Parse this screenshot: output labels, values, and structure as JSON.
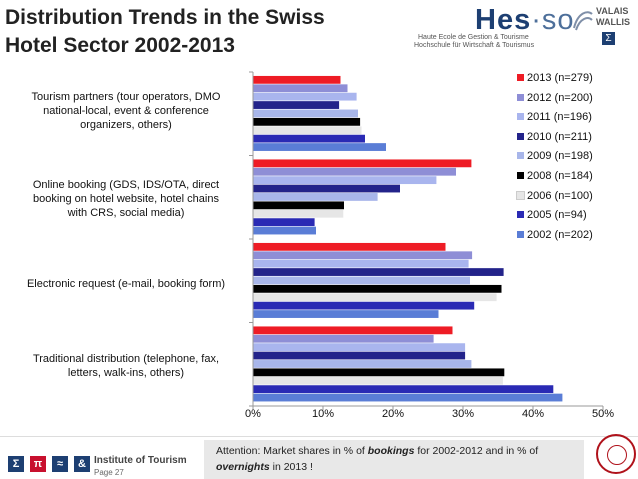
{
  "header": {
    "title_line1": "Distribution Trends in the Swiss",
    "title_line2": "Hotel Sector 2002-2013"
  },
  "logo": {
    "brand_hes": "Hes",
    "brand_so": "·so",
    "sub1": "Haute Ecole de Gestion & Tourisme",
    "sub2": "Hochschule für Wirtschaft & Tourismus",
    "valais": "VALAIS",
    "wallis": "WALLIS",
    "badge": "Σ"
  },
  "chart_data": {
    "type": "bar",
    "orientation": "horizontal",
    "categories": [
      "Tourism partners (tour operators, DMO national-local, event & conference organizers, others)",
      "Online booking (GDS, IDS/OTA, direct booking on hotel website, hotel chains with CRS, social media)",
      "Electronic request (e-mail, booking form)",
      "Traditional distribution (telephone, fax, letters, walk-ins, others)"
    ],
    "category_lines": [
      [
        "Tourism partners (tour operators, DMO",
        "national-local, event & conference",
        "organizers, others)"
      ],
      [
        "Online booking (GDS, IDS/OTA, direct",
        "booking on hotel website, hotel chains",
        "with CRS, social media)"
      ],
      [
        "Electronic request (e-mail, booking form)"
      ],
      [
        "Traditional distribution (telephone, fax,",
        "letters, walk-ins, others)"
      ]
    ],
    "series": [
      {
        "name": "2013 (n=279)",
        "color": "#ee1c25",
        "values": [
          12.5,
          31.2,
          27.5,
          28.5
        ]
      },
      {
        "name": "2012 (n=200)",
        "color": "#8e8ed6",
        "values": [
          13.5,
          29.0,
          31.3,
          25.8
        ]
      },
      {
        "name": "2011 (n=196)",
        "color": "#a9b5ee",
        "values": [
          14.8,
          26.2,
          30.8,
          30.3
        ]
      },
      {
        "name": "2010 (n=211)",
        "color": "#23238a",
        "values": [
          12.3,
          21.0,
          35.8,
          30.3
        ]
      },
      {
        "name": "2009 (n=198)",
        "color": "#a8b6ea",
        "values": [
          15.0,
          17.8,
          31.0,
          31.2
        ]
      },
      {
        "name": "2008 (n=184)",
        "color": "#000000",
        "values": [
          15.3,
          13.0,
          35.5,
          35.9
        ]
      },
      {
        "name": "2006 (n=100)",
        "color": "#e6e6e6",
        "values": [
          15.5,
          12.9,
          34.8,
          35.7
        ]
      },
      {
        "name": "2005 (n=94)",
        "color": "#2a2ab4",
        "values": [
          16.0,
          8.8,
          31.6,
          42.9
        ]
      },
      {
        "name": "2002 (n=202)",
        "color": "#5a7dd6",
        "values": [
          19.0,
          9.0,
          26.5,
          44.2
        ]
      }
    ],
    "xticks": [
      "0%",
      "10%",
      "20%",
      "30%",
      "40%",
      "50%"
    ],
    "xlim": [
      0,
      50
    ],
    "grid": false,
    "legend": "right"
  },
  "footer": {
    "institute": "Institute of Tourism",
    "page": "Page 27",
    "symbols": [
      "Σ",
      "π",
      "≈",
      "&"
    ],
    "symbol_colors": [
      "#1d3f72",
      "#c8102e",
      "#1d3f72",
      "#1d3f72"
    ],
    "attention_pre": "Attention: Market shares in % of ",
    "attention_em1": "bookings",
    "attention_mid": " for 2002-2012 and in % of",
    "attention_em2": "overnights",
    "attention_post": " in 2013 !"
  }
}
